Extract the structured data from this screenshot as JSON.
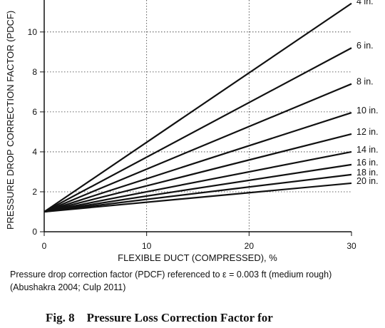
{
  "chart_data": {
    "type": "line",
    "y_label": "PRESSURE DROP CORRECTION FACTOR (PDCF)",
    "x_label": "FLEXIBLE DUCT (COMPRESSED), %",
    "x": [
      0,
      30
    ],
    "series": [
      {
        "name": "4 in.",
        "color": "#111111",
        "values": [
          1,
          11.43
        ]
      },
      {
        "name": "6 in.",
        "color": "#111111",
        "values": [
          1,
          9.2
        ]
      },
      {
        "name": "8 in.",
        "color": "#111111",
        "values": [
          1,
          7.4
        ]
      },
      {
        "name": "10 in.",
        "color": "#111111",
        "values": [
          1,
          5.96
        ]
      },
      {
        "name": "12 in.",
        "color": "#111111",
        "values": [
          1,
          4.89
        ]
      },
      {
        "name": "14 in.",
        "color": "#111111",
        "values": [
          1,
          4.0
        ]
      },
      {
        "name": "16 in.",
        "color": "#111111",
        "values": [
          1,
          3.36
        ]
      },
      {
        "name": "18 in.",
        "color": "#111111",
        "values": [
          1,
          2.86
        ]
      },
      {
        "name": "20 in.",
        "color": "#111111",
        "values": [
          1,
          2.43
        ]
      }
    ],
    "xlim": [
      0,
      30
    ],
    "xticks": [
      0,
      10,
      20,
      30
    ],
    "ylim": [
      0,
      11.6
    ],
    "yticks": [
      0,
      2,
      4,
      6,
      8,
      10
    ],
    "grid": true
  },
  "caption": [
    "Pressure drop correction factor (PDCF) referenced to ε = 0.003 ft (medium rough)",
    "(Abushakra 2004; Culp 2011)"
  ],
  "figure_title": "Fig. 8    Pressure Loss Correction Factor for"
}
